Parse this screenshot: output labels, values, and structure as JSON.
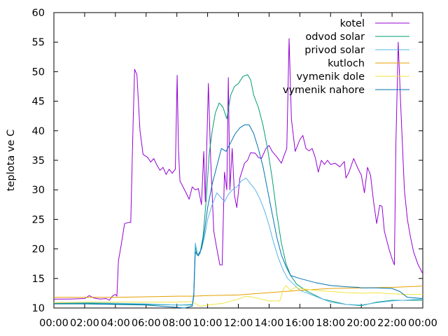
{
  "chart_data": {
    "type": "line",
    "ylabel": "teplota ve C",
    "xlim": [
      "00:00",
      "24:00"
    ],
    "ylim": [
      10,
      60
    ],
    "x_ticks": [
      "00:00",
      "02:00",
      "04:00",
      "06:00",
      "08:00",
      "10:00",
      "12:00",
      "14:00",
      "16:00",
      "18:00",
      "20:00",
      "22:00",
      "00:00"
    ],
    "y_ticks": [
      10,
      15,
      20,
      25,
      30,
      35,
      40,
      45,
      50,
      55,
      60
    ],
    "grid": false,
    "legend": "top-right",
    "series": [
      {
        "name": "kotel",
        "color": "#9400d3",
        "points": [
          [
            0,
            11.5
          ],
          [
            1,
            11.5
          ],
          [
            2,
            11.6
          ],
          [
            2.3,
            12.1
          ],
          [
            2.6,
            11.7
          ],
          [
            3,
            11.5
          ],
          [
            3.4,
            11.6
          ],
          [
            3.6,
            11.3
          ],
          [
            3.8,
            12
          ],
          [
            4,
            12.3
          ],
          [
            4.1,
            12
          ],
          [
            4.2,
            18
          ],
          [
            4.4,
            21
          ],
          [
            4.6,
            24.3
          ],
          [
            4.9,
            24.5
          ],
          [
            5,
            24.5
          ],
          [
            5.15,
            41
          ],
          [
            5.25,
            50.4
          ],
          [
            5.4,
            49.5
          ],
          [
            5.6,
            40
          ],
          [
            5.8,
            36
          ],
          [
            6.1,
            35.5
          ],
          [
            6.3,
            34.7
          ],
          [
            6.5,
            35.3
          ],
          [
            6.7,
            34.2
          ],
          [
            6.9,
            33.3
          ],
          [
            7.1,
            33.8
          ],
          [
            7.3,
            32.6
          ],
          [
            7.5,
            33.5
          ],
          [
            7.7,
            32.8
          ],
          [
            7.9,
            33.5
          ],
          [
            8.02,
            49.4
          ],
          [
            8.1,
            37
          ],
          [
            8.2,
            31.5
          ],
          [
            8.4,
            30.5
          ],
          [
            8.6,
            29.5
          ],
          [
            8.8,
            28.4
          ],
          [
            9,
            30.5
          ],
          [
            9.2,
            30
          ],
          [
            9.4,
            30.2
          ],
          [
            9.6,
            27.5
          ],
          [
            9.75,
            36.5
          ],
          [
            9.85,
            28
          ],
          [
            10.05,
            48
          ],
          [
            10.2,
            35
          ],
          [
            10.4,
            23
          ],
          [
            10.6,
            20
          ],
          [
            10.8,
            17.3
          ],
          [
            10.95,
            17.3
          ],
          [
            11.1,
            33
          ],
          [
            11.25,
            30
          ],
          [
            11.35,
            49
          ],
          [
            11.45,
            30
          ],
          [
            11.6,
            37
          ],
          [
            11.75,
            29
          ],
          [
            11.9,
            27
          ],
          [
            12.1,
            32
          ],
          [
            12.4,
            34.5
          ],
          [
            12.6,
            35
          ],
          [
            12.8,
            36.3
          ],
          [
            13.1,
            36.2
          ],
          [
            13.3,
            35.5
          ],
          [
            13.5,
            35.3
          ],
          [
            13.8,
            37
          ],
          [
            14,
            37.5
          ],
          [
            14.2,
            36.5
          ],
          [
            14.5,
            35.6
          ],
          [
            14.8,
            34.5
          ],
          [
            15,
            36
          ],
          [
            15.15,
            37
          ],
          [
            15.3,
            55.6
          ],
          [
            15.45,
            42
          ],
          [
            15.7,
            36.5
          ],
          [
            16,
            38.5
          ],
          [
            16.2,
            39.2
          ],
          [
            16.4,
            37
          ],
          [
            16.6,
            36.6
          ],
          [
            16.8,
            37
          ],
          [
            17,
            35.5
          ],
          [
            17.2,
            33
          ],
          [
            17.4,
            35
          ],
          [
            17.6,
            34.3
          ],
          [
            17.8,
            35
          ],
          [
            18,
            34.3
          ],
          [
            18.3,
            34.5
          ],
          [
            18.6,
            33.9
          ],
          [
            18.9,
            34.8
          ],
          [
            19,
            32
          ],
          [
            19.2,
            33
          ],
          [
            19.5,
            35.3
          ],
          [
            19.8,
            33.5
          ],
          [
            20,
            32.5
          ],
          [
            20.2,
            29.5
          ],
          [
            20.4,
            33.8
          ],
          [
            20.6,
            32.5
          ],
          [
            20.8,
            28
          ],
          [
            21,
            24.3
          ],
          [
            21.2,
            27.4
          ],
          [
            21.35,
            27.2
          ],
          [
            21.5,
            23
          ],
          [
            21.8,
            20
          ],
          [
            22,
            18.3
          ],
          [
            22.15,
            17.3
          ],
          [
            22.25,
            38
          ],
          [
            22.4,
            55
          ],
          [
            22.55,
            45
          ],
          [
            22.8,
            30
          ],
          [
            23,
            25
          ],
          [
            23.2,
            22
          ],
          [
            23.4,
            19.5
          ],
          [
            23.7,
            17.3
          ],
          [
            24,
            15.8
          ]
        ]
      },
      {
        "name": "odvod solar",
        "color": "#009e73",
        "points": [
          [
            0,
            10.8
          ],
          [
            2,
            10.8
          ],
          [
            4,
            10.7
          ],
          [
            6,
            10.6
          ],
          [
            8,
            10.5
          ],
          [
            9,
            10.5
          ],
          [
            9.1,
            12
          ],
          [
            9.2,
            20.5
          ],
          [
            9.3,
            19
          ],
          [
            9.5,
            19.2
          ],
          [
            9.7,
            22
          ],
          [
            9.9,
            28
          ],
          [
            10.1,
            36
          ],
          [
            10.3,
            40
          ],
          [
            10.5,
            43
          ],
          [
            10.75,
            44.7
          ],
          [
            11,
            44
          ],
          [
            11.25,
            42
          ],
          [
            11.5,
            46
          ],
          [
            11.75,
            47.5
          ],
          [
            12,
            48
          ],
          [
            12.3,
            49.2
          ],
          [
            12.6,
            49.5
          ],
          [
            12.8,
            48.6
          ],
          [
            13,
            46
          ],
          [
            13.3,
            44
          ],
          [
            13.6,
            41
          ],
          [
            13.9,
            37
          ],
          [
            14.2,
            32
          ],
          [
            14.5,
            26
          ],
          [
            14.8,
            21
          ],
          [
            15.1,
            17.5
          ],
          [
            15.4,
            15.5
          ],
          [
            15.8,
            14
          ],
          [
            16.5,
            12.8
          ],
          [
            17.5,
            11.5
          ],
          [
            19,
            10.6
          ],
          [
            20,
            10.4
          ],
          [
            21,
            11
          ],
          [
            22,
            11.3
          ],
          [
            24,
            11.3
          ]
        ]
      },
      {
        "name": "privod solar",
        "color": "#56b4e9",
        "points": [
          [
            0,
            10.9
          ],
          [
            2,
            10.9
          ],
          [
            4,
            10.8
          ],
          [
            6,
            10.7
          ],
          [
            8,
            10.5
          ],
          [
            9,
            10.6
          ],
          [
            9.1,
            12.5
          ],
          [
            9.2,
            21
          ],
          [
            9.35,
            19
          ],
          [
            9.6,
            20
          ],
          [
            9.8,
            22
          ],
          [
            10,
            25
          ],
          [
            10.3,
            27.5
          ],
          [
            10.6,
            29.5
          ],
          [
            10.9,
            28.6
          ],
          [
            11.1,
            28
          ],
          [
            11.3,
            29
          ],
          [
            11.6,
            30
          ],
          [
            11.9,
            30.5
          ],
          [
            12.2,
            31.5
          ],
          [
            12.5,
            32
          ],
          [
            12.8,
            31
          ],
          [
            13.1,
            30
          ],
          [
            13.4,
            28.5
          ],
          [
            13.7,
            26.5
          ],
          [
            14,
            24
          ],
          [
            14.3,
            21
          ],
          [
            14.6,
            18.5
          ],
          [
            14.9,
            16.5
          ],
          [
            15.2,
            15
          ],
          [
            15.6,
            14
          ],
          [
            16,
            13
          ],
          [
            17,
            12
          ],
          [
            18,
            11
          ],
          [
            19,
            10.6
          ],
          [
            20,
            10.5
          ],
          [
            21,
            10.9
          ],
          [
            22,
            11.2
          ],
          [
            24,
            11.5
          ]
        ]
      },
      {
        "name": "kutloch",
        "color": "#e69f00",
        "points": [
          [
            0,
            11.8
          ],
          [
            2,
            11.8
          ],
          [
            4,
            11.8
          ],
          [
            6,
            11.9
          ],
          [
            8,
            12
          ],
          [
            9,
            12
          ],
          [
            10,
            12.1
          ],
          [
            12,
            12.2
          ],
          [
            14,
            12.6
          ],
          [
            16,
            13
          ],
          [
            18,
            13.3
          ],
          [
            20,
            13.4
          ],
          [
            22,
            13.5
          ],
          [
            24,
            13.7
          ]
        ]
      },
      {
        "name": "vymenik dole",
        "color": "#f0e442",
        "points": [
          [
            0,
            10.9
          ],
          [
            2,
            11
          ],
          [
            4,
            11
          ],
          [
            6,
            11
          ],
          [
            8,
            11
          ],
          [
            9,
            11.1
          ],
          [
            9.5,
            10.3
          ],
          [
            10,
            10.5
          ],
          [
            11,
            10.8
          ],
          [
            12,
            11.5
          ],
          [
            12.5,
            12
          ],
          [
            13,
            11.8
          ],
          [
            14,
            11.2
          ],
          [
            14.7,
            11.2
          ],
          [
            14.9,
            13
          ],
          [
            15.1,
            13.8
          ],
          [
            15.4,
            13
          ],
          [
            15.7,
            13.5
          ],
          [
            16,
            13.3
          ],
          [
            17,
            13
          ],
          [
            18,
            12.8
          ],
          [
            19,
            12.6
          ],
          [
            20,
            12.5
          ],
          [
            21,
            12.6
          ],
          [
            22,
            12.4
          ],
          [
            23,
            12.3
          ],
          [
            24,
            12.3
          ]
        ]
      },
      {
        "name": "vymenik nahore",
        "color": "#0072b2",
        "points": [
          [
            0,
            10.7
          ],
          [
            2,
            10.7
          ],
          [
            4,
            10.6
          ],
          [
            6,
            10.5
          ],
          [
            7.5,
            10.2
          ],
          [
            8.5,
            10
          ],
          [
            9,
            10.3
          ],
          [
            9.1,
            12
          ],
          [
            9.2,
            19.5
          ],
          [
            9.4,
            18.8
          ],
          [
            9.6,
            20
          ],
          [
            9.8,
            23
          ],
          [
            10,
            27
          ],
          [
            10.3,
            31
          ],
          [
            10.6,
            34
          ],
          [
            10.9,
            37
          ],
          [
            11.2,
            36.5
          ],
          [
            11.5,
            38
          ],
          [
            11.8,
            39.5
          ],
          [
            12.1,
            40.5
          ],
          [
            12.4,
            41
          ],
          [
            12.7,
            41
          ],
          [
            13,
            39.5
          ],
          [
            13.3,
            37
          ],
          [
            13.6,
            34
          ],
          [
            13.9,
            30
          ],
          [
            14.2,
            26
          ],
          [
            14.5,
            22
          ],
          [
            14.8,
            19
          ],
          [
            15.1,
            17
          ],
          [
            15.4,
            15.5
          ],
          [
            16,
            15
          ],
          [
            17,
            14.3
          ],
          [
            18,
            13.8
          ],
          [
            19,
            13.6
          ],
          [
            19.8,
            13.5
          ],
          [
            20,
            13.4
          ],
          [
            21,
            13.4
          ],
          [
            22,
            13.3
          ],
          [
            22.5,
            12.8
          ],
          [
            23,
            11.8
          ],
          [
            24,
            11.6
          ]
        ]
      }
    ]
  }
}
